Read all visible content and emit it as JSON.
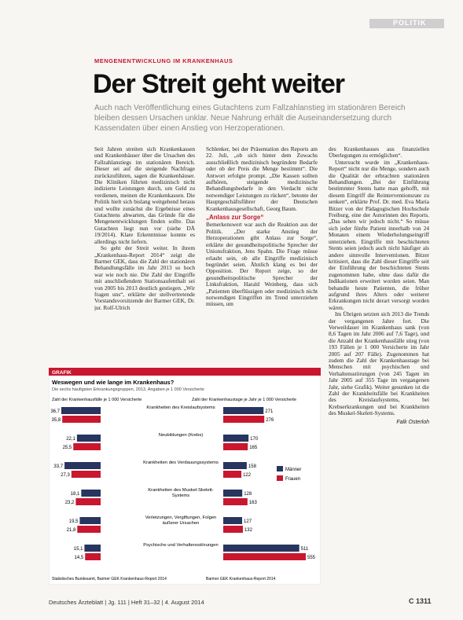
{
  "header": {
    "section": "POLITIK"
  },
  "article": {
    "kicker": "MENGENENTWICKLUNG IM KRANKENHAUS",
    "title": "Der Streit geht weiter",
    "deck": "Auch nach Veröffentlichung eines Gutachtens zum Fallzahlanstieg im stationären Bereich bleiben dessen Ursachen unklar. Neue Nahrung erhält die Auseinandersetzung durch Kassendaten über einen Anstieg von Herzoperationen.",
    "columns": [
      {
        "paragraphs": [
          "Seit Jahren streiten sich Krankenkassen und Krankenhäuser über die Ursachen des Fallzahlanstiegs im stationären Bereich. Dieser sei auf die steigende Nachfrage zurückzuführen, sagen die Krankenhäuser. Die Kliniken führten medizinisch nicht indizierte Leistungen durch, um Geld zu verdienen, meinen die Krankenkassen. Die Politik hielt sich bislang weitgehend heraus und wollte zunächst die Ergebnisse eines Gutachtens abwarten, das Gründe für die Mengenentwicklungen finden sollte. Das Gutachten liegt nun vor (siehe DÄ 19/2014). Klare Erkenntnisse konnte es allerdings nicht liefern.",
          "So geht der Streit weiter. In ihrem „Krankenhaus-Report 2014“ zeigt die Barmer GEK, dass die Zahl der stationären Behandlungsfälle im Jahr 2013 so hoch war wie noch nie. Die Zahl der Eingriffe mit anschließendem Stationsaufenthalt sei von 2005 bis 2013 deutlich gestiegen. „Wir fragen uns“, erklärte der stellvertretende Vorstandsvorsitzende der Barmer GEK, Dr. jur. Rolf-Ulrich"
        ]
      },
      {
        "paragraphs": [
          "Schlenker, bei der Präsentation des Reports am 22. Juli, „ob sich hinter dem Zuwachs ausschließlich medizinisch begründete Bedarfe oder ob der Preis die Menge bestimmt“. Die Antwort erfolgte prompt. „Die Kassen sollten aufhören, steigende medizinische Behandlungsbedarfe in den Verdacht nicht notwendiger Leistungen zu rücken“, betonte der Hauptgeschäftsführer der Deutschen Krankenhausgesellschaft, Georg Baum."
        ],
        "heading": "„Anlass zur Sorge“",
        "paragraphs2": [
          "Bemerkenswert war auch die Reaktion aus der Politik. „Der starke Anstieg der Herzoperationen gibt Anlass zur Sorge“, erklärte der gesundheitspolitische Sprecher der Unionsfraktion, Jens Spahn. Die Frage müsse erlaubt sein, ob alle Eingriffe medizinisch begründet seien. Ähnlich klang es bei der Opposition. Der Report zeige, so der gesundheitspolitische Sprecher der Linksfraktion, Harald Weinberg, dass sich „Patienten überflüssigen oder medizinisch nicht notwendigen Eingriffen im Trend unterziehen müssen, um"
        ]
      },
      {
        "paragraphs": [
          "des Krankenhauses aus finanziellen Überlegungen zu ermöglichen“.",
          "Untersucht wurde im „Krankenhaus-Report“ nicht nur die Menge, sondern auch die Qualität der erbrachten stationären Behandlungen. „Bei der Einführung bestimmter Stents hatte man gehofft, mit diesem Eingriff die Reinterventionsrate zu senken“, erklärte Prof. Dr. med. Eva Maria Bitzer von der Pädagogischen Hochschule Freiburg, eine der Autorinnen des Reports. „Das sehen wir jedoch nicht.“ So müsse sich jeder fünfte Patient innerhalb von 24 Monaten einem Wiederholungseingriff unterziehen. Eingriffe mit beschichteten Stents seien jedoch auch nicht häufiger als andere sinnvolle Interventionen. Bitzer kritisiert, dass die Zahl dieser Eingriffe seit der Einführung der beschichteten Stents zugenommen habe, ohne dass dafür die Indikationen erweitert worden seien. Man behandle heute Patienten, die früher aufgrund ihres Alters oder weiterer Erkrankungen nicht derart versorgt worden wären.",
          "Im Übrigen setzten sich 2013 die Trends der vergangenen Jahre fort. Die Verweildauer im Krankenhaus sank (von 8,6 Tagen im Jahr 2006 auf 7,6 Tage), und die Anzahl der Krankenhausfälle stieg (von 193 Fällen je 1 000 Versicherte im Jahr 2005 auf 207 Fälle). Zugenommen hat zudem die Zahl der Krankenhaustage bei Menschen mit psychischen und Verhaltensstörungen (von 245 Tagen im Jahr 2005 auf 355 Tage im vergangenen Jahr, siehe Grafik). Weiter gesunken ist die Zahl der Krankheitsfälle bei Krankheiten des Kreislaufsystems, bei Krebserkrankungen und bei Krankheiten des Muskel-Skelett-Systems."
        ],
        "author": "Falk Osterloh"
      }
    ]
  },
  "graphic": {
    "label": "GRAFIK",
    "title": "Weswegen und wie lange im Krankenhaus?",
    "subtitle": "Die sechs häufigsten Erkrankungsgruppen, 2013, Angaben je 1 000 Versicherte",
    "left_heading": "Zahl der Krankenhausfälle je 1 000 Versicherte",
    "right_heading": "Zahl der Krankenhaustage je Jahr je 1 000 Versicherte",
    "categories": [
      "Krankheiten des Kreislaufsystems",
      "Neubildungen (Krebs)",
      "Krankheiten des Verdauungssystems",
      "Krankheiten des Muskel-Skelett-Systems",
      "Verletzungen, Vergiftungen, Folgen äußerer Ursachen",
      "Psychische und Verhaltensstörungen"
    ],
    "left_series": [
      {
        "name": "Männer",
        "color": "#27355f",
        "values": [
          36.7,
          22.1,
          33.7,
          18.1,
          19.5,
          15.1
        ],
        "value_labels": [
          "36,7",
          "22,1",
          "33,7",
          "18,1",
          "19,5",
          "15,1"
        ]
      },
      {
        "name": "Frauen",
        "color": "#c8172e",
        "values": [
          35.8,
          25.5,
          27.3,
          23.2,
          21.8,
          14.5
        ],
        "value_labels": [
          "35,8",
          "25,5",
          "27,3",
          "23,2",
          "21,8",
          "14,5"
        ]
      }
    ],
    "right_series": [
      {
        "name": "Männer",
        "color": "#27355f",
        "values": [
          271,
          170,
          158,
          128,
          127,
          511
        ]
      },
      {
        "name": "Frauen",
        "color": "#c8172e",
        "values": [
          276,
          165,
          122,
          163,
          132,
          555
        ]
      }
    ],
    "source_left": "Statistisches Bundesamt, Barmer GEK Krankenhaus-Report 2014",
    "source_right": "Barmer GEK Krankenhaus-Report 2014"
  },
  "footer": {
    "journal": "Deutsches Ärzteblatt | Jg. 111 | Heft 31–32 | 4. August 2014",
    "page": "C 1311"
  }
}
